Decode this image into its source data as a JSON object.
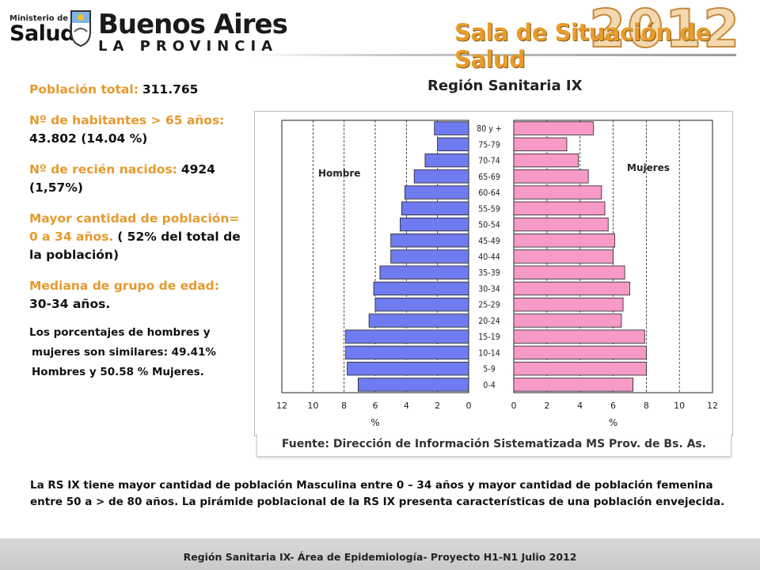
{
  "header": {
    "ministerio_small": "Ministerio de",
    "ministerio_big": "Salud",
    "ba_line1": "Buenos Aires",
    "ba_line2": "LA PROVINCIA",
    "year": "2012",
    "title": "Sala de Situación de Salud"
  },
  "info": {
    "poblacion_label": "Población total:",
    "poblacion_value": "311.765",
    "mayores_label": "Nº de habitantes > 65 años:",
    "mayores_value": "43.802 (14.04 %)",
    "nacidos_label": "Nº de recién nacidos:",
    "nacidos_value": "4924",
    "nacidos_pct": "(1,57%)",
    "mayor_label": "Mayor cantidad de población= 0 a 34 años.",
    "mayor_value": "( 52% del total de la población)",
    "mediana_label": "Mediana de grupo de edad:",
    "mediana_value": "30-34 años.",
    "porcentajes_1": "Los porcentajes de hombres y",
    "porcentajes_2": "mujeres son similares: 49.41%",
    "porcentajes_3": "Hombres y 50.58 % Mujeres."
  },
  "chart_title": "Región Sanitaria IX",
  "chart_data": {
    "type": "bar",
    "orientation": "horizontal-population-pyramid",
    "title": "Región Sanitaria IX",
    "categories": [
      "80 y +",
      "75-79",
      "70-74",
      "65-69",
      "60-64",
      "55-59",
      "50-54",
      "45-49",
      "40-44",
      "35-39",
      "30-34",
      "25-29",
      "20-24",
      "15-19",
      "10-14",
      "5-9",
      "0-4"
    ],
    "series": [
      {
        "name": "Hombre",
        "color": "#6f7bf0",
        "values": [
          2.2,
          2.0,
          2.8,
          3.5,
          4.1,
          4.3,
          4.4,
          5.0,
          5.0,
          5.7,
          6.1,
          6.0,
          6.4,
          7.9,
          7.9,
          7.8,
          7.1
        ]
      },
      {
        "name": "Mujeres",
        "color": "#f79ac8",
        "values": [
          4.8,
          3.2,
          3.9,
          4.5,
          5.3,
          5.5,
          5.7,
          6.1,
          6.0,
          6.7,
          7.0,
          6.6,
          6.5,
          7.9,
          8.0,
          8.0,
          7.2
        ]
      }
    ],
    "xlabel_left": "%",
    "xlabel_right": "%",
    "xlim": [
      0,
      12
    ],
    "ticks_left": [
      "12",
      "10",
      "8",
      "6",
      "4",
      "2",
      "0"
    ],
    "ticks_right": [
      "0",
      "2",
      "4",
      "6",
      "8",
      "10",
      "12"
    ],
    "grid": "vertical dashed",
    "legend": "inline labels"
  },
  "source": "Fuente: Dirección de Información Sistematizada MS Prov. de Bs. As.",
  "bottom_text": "La RS IX tiene mayor cantidad de población Masculina entre 0 – 34 años y mayor cantidad de población femenina entre 50 a > de 80 años. La pirámide poblacional de la RS IX presenta características de una población envejecida.",
  "footer": "Región Sanitaria IX- Área de Epidemiología- Proyecto H1-N1 Julio 2012"
}
